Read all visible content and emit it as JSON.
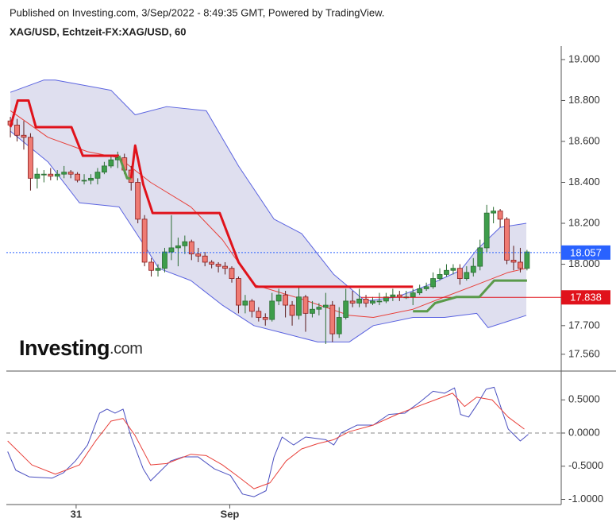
{
  "chart_data": [
    {
      "type": "candlestick",
      "subtitle": "Published on Investing.com, 3/Sep/2022 - 8:49:35 GMT, Powered by TradingView.",
      "title": "XAG/USD, Echtzeit-FX:XAG/USD, 60",
      "logo": "Investing",
      "logo_suffix": ".com",
      "x": [
        0,
        1,
        2,
        3,
        4,
        5,
        6,
        7,
        8,
        9,
        10,
        11,
        12,
        13,
        14,
        15,
        16,
        17,
        18,
        19,
        20,
        21,
        22,
        23,
        24,
        25,
        26,
        27,
        28,
        29,
        30,
        31,
        32,
        33,
        34,
        35,
        36,
        37,
        38,
        39,
        40,
        41,
        42,
        43,
        44,
        45,
        46,
        47,
        48,
        49,
        50,
        51,
        52,
        53,
        54,
        55,
        56,
        57,
        58,
        59,
        60,
        61,
        62,
        63,
        64,
        65,
        66,
        67,
        68,
        69,
        70,
        71,
        72,
        73,
        74,
        75,
        76,
        77
      ],
      "open": [
        18.7,
        18.68,
        18.63,
        18.62,
        18.42,
        18.44,
        18.44,
        18.43,
        18.44,
        18.45,
        18.44,
        18.41,
        18.41,
        18.42,
        18.45,
        18.48,
        18.51,
        18.52,
        18.46,
        18.4,
        18.22,
        18.01,
        17.97,
        17.98,
        18.06,
        18.08,
        18.09,
        18.11,
        18.05,
        18.04,
        18.01,
        18.0,
        17.99,
        17.98,
        17.93,
        17.8,
        17.82,
        17.77,
        17.74,
        17.73,
        17.82,
        17.85,
        17.8,
        17.75,
        17.84,
        17.76,
        17.78,
        17.79,
        17.8,
        17.66,
        17.74,
        17.82,
        17.81,
        17.83,
        17.81,
        17.82,
        17.82,
        17.84,
        17.85,
        17.84,
        17.84,
        17.86,
        17.88,
        17.89,
        17.93,
        17.95,
        17.97,
        17.98,
        17.93,
        17.96,
        17.99,
        18.08,
        18.25,
        18.26,
        18.22,
        18.02,
        18.01,
        17.98
      ],
      "high": [
        18.72,
        18.71,
        18.7,
        18.64,
        18.47,
        18.46,
        18.47,
        18.46,
        18.48,
        18.46,
        18.45,
        18.44,
        18.44,
        18.47,
        18.5,
        18.53,
        18.55,
        18.54,
        18.48,
        18.42,
        18.24,
        18.03,
        18.0,
        18.08,
        18.24,
        18.13,
        18.14,
        18.12,
        18.08,
        18.06,
        18.02,
        18.01,
        18.01,
        17.99,
        17.94,
        17.85,
        17.83,
        17.79,
        17.76,
        17.86,
        17.88,
        17.87,
        17.82,
        17.89,
        17.85,
        17.82,
        17.81,
        17.86,
        17.82,
        17.79,
        17.88,
        17.87,
        17.88,
        17.85,
        17.84,
        17.86,
        17.86,
        17.88,
        17.87,
        17.87,
        17.88,
        17.9,
        17.91,
        17.96,
        17.98,
        18.0,
        18.0,
        18.0,
        17.99,
        18.03,
        18.12,
        18.29,
        18.28,
        18.27,
        18.23,
        18.09,
        18.08,
        18.07
      ],
      "low": [
        18.62,
        18.6,
        18.56,
        18.36,
        18.37,
        18.4,
        18.41,
        18.41,
        18.42,
        18.42,
        18.4,
        18.39,
        18.39,
        18.39,
        18.44,
        18.47,
        18.47,
        18.44,
        18.36,
        18.2,
        17.99,
        17.94,
        17.94,
        17.96,
        18.02,
        17.99,
        18.05,
        18.02,
        18.01,
        17.99,
        17.98,
        17.96,
        17.95,
        17.91,
        17.76,
        17.76,
        17.74,
        17.72,
        17.7,
        17.72,
        17.8,
        17.74,
        17.7,
        17.73,
        17.67,
        17.74,
        17.75,
        17.61,
        17.62,
        17.64,
        17.73,
        17.79,
        17.79,
        17.79,
        17.8,
        17.8,
        17.81,
        17.82,
        17.82,
        17.83,
        17.8,
        17.85,
        17.87,
        17.88,
        17.92,
        17.94,
        17.95,
        17.9,
        17.92,
        17.94,
        17.97,
        18.06,
        18.2,
        18.18,
        18.0,
        17.97,
        17.96,
        17.97
      ],
      "close": [
        18.68,
        18.63,
        18.62,
        18.42,
        18.44,
        18.44,
        18.43,
        18.44,
        18.45,
        18.44,
        18.41,
        18.41,
        18.42,
        18.45,
        18.48,
        18.51,
        18.52,
        18.46,
        18.4,
        18.22,
        18.01,
        17.97,
        17.98,
        18.06,
        18.08,
        18.09,
        18.11,
        18.05,
        18.04,
        18.01,
        18.0,
        17.99,
        17.98,
        17.93,
        17.8,
        17.82,
        17.77,
        17.74,
        17.73,
        17.82,
        17.85,
        17.8,
        17.75,
        17.84,
        17.76,
        17.78,
        17.79,
        17.8,
        17.66,
        17.74,
        17.82,
        17.81,
        17.83,
        17.81,
        17.82,
        17.82,
        17.84,
        17.85,
        17.84,
        17.84,
        17.86,
        17.88,
        17.89,
        17.93,
        17.95,
        17.97,
        17.98,
        17.93,
        17.96,
        17.99,
        18.08,
        18.25,
        18.26,
        18.22,
        18.02,
        18.01,
        17.98,
        18.06
      ],
      "up_color": "#3e9d4b",
      "down_color": "#ef7b73",
      "bollinger": {
        "color": "#5a63e0",
        "fill": "#dfdfef",
        "upper": {
          "x": [
            0,
            5.0,
            6.7,
            15.0,
            18.6,
            23.3,
            29.2,
            34.0,
            39.3,
            43.4,
            48.2,
            52.9,
            57.6,
            62.4,
            67.1,
            69.5,
            73.0,
            76.9
          ],
          "values": [
            18.84,
            18.9,
            18.9,
            18.85,
            18.73,
            18.77,
            18.75,
            18.48,
            18.22,
            18.15,
            17.95,
            17.82,
            17.84,
            17.9,
            17.97,
            18.07,
            18.18,
            18.2
          ]
        },
        "middle": {
          "x": [
            0,
            5.6,
            11.5,
            16.2,
            20.9,
            26.9,
            31.6,
            36.3,
            43.4,
            50.5,
            54.1,
            60.0,
            64.7,
            69.5,
            74.2,
            76.9
          ],
          "values": [
            18.75,
            18.62,
            18.55,
            18.52,
            18.4,
            18.28,
            18.12,
            17.9,
            17.83,
            17.75,
            17.74,
            17.78,
            17.84,
            17.9,
            17.96,
            17.98
          ],
          "color": "#e8403a"
        },
        "lower": {
          "x": [
            0,
            5.6,
            10.3,
            16.2,
            19.8,
            22.1,
            26.9,
            31.6,
            36.3,
            41.1,
            45.8,
            50.5,
            54.1,
            60.0,
            64.7,
            69.5,
            71.2,
            76.9
          ],
          "values": [
            18.65,
            18.5,
            18.3,
            18.28,
            18.1,
            17.98,
            17.92,
            17.8,
            17.7,
            17.66,
            17.62,
            17.62,
            17.7,
            17.74,
            17.74,
            17.76,
            17.69,
            17.75
          ]
        }
      },
      "supertrend": [
        {
          "color": "#e0121b",
          "x": [
            0,
            1.1,
            2.7,
            3.8,
            9.1,
            10.8,
            16.2
          ],
          "values": [
            18.67,
            18.8,
            18.8,
            18.67,
            18.67,
            18.53,
            18.53
          ]
        },
        {
          "color": "#5a9a4a",
          "x": [
            16.2,
            17.4,
            18.0
          ],
          "values": [
            18.53,
            18.42,
            18.42
          ]
        },
        {
          "color": "#e0121b",
          "x": [
            18.0,
            18.6,
            19.8,
            21.2,
            31.2,
            34.0,
            36.6,
            60.0
          ],
          "values": [
            18.42,
            18.58,
            18.39,
            18.25,
            18.25,
            18.01,
            17.89,
            17.89
          ]
        },
        {
          "color": "#5a9a4a",
          "x": [
            60.0,
            62.1,
            63.3,
            66.5,
            69.9,
            72.1,
            77.0
          ],
          "values": [
            17.77,
            17.77,
            17.81,
            17.84,
            17.84,
            17.92,
            17.92
          ]
        }
      ],
      "price_lines": [
        {
          "value": 18.057,
          "label": "18.057",
          "color": "#2962ff",
          "dashed": true
        },
        {
          "value": 17.838,
          "label": "17.838",
          "color": "#e0121b",
          "dashed": false
        }
      ],
      "xlim": [
        -0.6,
        82.1
      ],
      "ylim": [
        17.478,
        19.058
      ],
      "yticks": [
        {
          "value": 19.0,
          "label": "19.000"
        },
        {
          "value": 18.8,
          "label": "18.800"
        },
        {
          "value": 18.6,
          "label": "18.600"
        },
        {
          "value": 18.4,
          "label": "18.400"
        },
        {
          "value": 18.2,
          "label": "18.200"
        },
        {
          "value": 18.0,
          "label": "18.000"
        },
        {
          "value": 17.7,
          "label": "17.700"
        },
        {
          "value": 17.56,
          "label": "17.560"
        }
      ],
      "xticks": [
        {
          "value": 9.8,
          "label": "31"
        },
        {
          "value": 32.7,
          "label": "Sep"
        }
      ]
    },
    {
      "type": "line",
      "series": [
        {
          "color": "#4a4fc0",
          "x": [
            -0.4,
            0.8,
            2.8,
            6.2,
            7.9,
            9.7,
            11.5,
            13.3,
            14.4,
            15.6,
            16.8,
            18.0,
            19.8,
            20.9,
            22.1,
            23.9,
            25.7,
            28.0,
            30.4,
            32.8,
            34.6,
            36.3,
            38.1,
            39.3,
            40.5,
            42.2,
            44.0,
            47.0,
            48.2,
            49.3,
            51.7,
            54.1,
            56.4,
            58.8,
            61.2,
            63.0,
            64.7,
            66.2,
            67.1,
            68.3,
            69.5,
            70.9,
            72.1,
            74.2,
            76.0,
            77.2
          ],
          "values": [
            -0.28,
            -0.56,
            -0.66,
            -0.68,
            -0.6,
            -0.42,
            -0.18,
            0.3,
            0.36,
            0.3,
            0.36,
            -0.06,
            -0.54,
            -0.72,
            -0.6,
            -0.42,
            -0.36,
            -0.36,
            -0.54,
            -0.64,
            -0.92,
            -0.96,
            -0.87,
            -0.36,
            -0.06,
            -0.18,
            -0.06,
            -0.1,
            -0.18,
            0.0,
            0.12,
            0.12,
            0.28,
            0.3,
            0.48,
            0.63,
            0.6,
            0.68,
            0.28,
            0.24,
            0.42,
            0.66,
            0.69,
            0.06,
            -0.12,
            -0.02
          ]
        },
        {
          "color": "#e8403a",
          "x": [
            -0.4,
            3.2,
            6.7,
            10.3,
            12.7,
            15.0,
            16.8,
            18.6,
            20.9,
            23.3,
            26.9,
            29.2,
            31.6,
            34.0,
            36.3,
            38.7,
            41.1,
            43.4,
            45.8,
            48.2,
            50.5,
            54.1,
            57.6,
            61.2,
            63.6,
            65.9,
            67.7,
            69.5,
            71.8,
            74.2,
            76.6
          ],
          "values": [
            -0.12,
            -0.48,
            -0.62,
            -0.48,
            -0.12,
            0.18,
            0.22,
            -0.04,
            -0.48,
            -0.46,
            -0.32,
            -0.34,
            -0.48,
            -0.66,
            -0.84,
            -0.75,
            -0.42,
            -0.24,
            -0.16,
            -0.1,
            0.02,
            0.12,
            0.28,
            0.42,
            0.51,
            0.6,
            0.4,
            0.54,
            0.5,
            0.24,
            0.06
          ]
        }
      ],
      "xlim": [
        -0.6,
        82.1
      ],
      "ylim": [
        -1.078,
        0.934
      ],
      "yticks": [
        {
          "value": 0.5,
          "label": "0.5000"
        },
        {
          "value": 0,
          "label": "0.0000"
        },
        {
          "value": -0.5,
          "label": "-0.5000"
        },
        {
          "value": -1.0,
          "label": "-1.0000"
        }
      ],
      "hline": 0
    }
  ]
}
